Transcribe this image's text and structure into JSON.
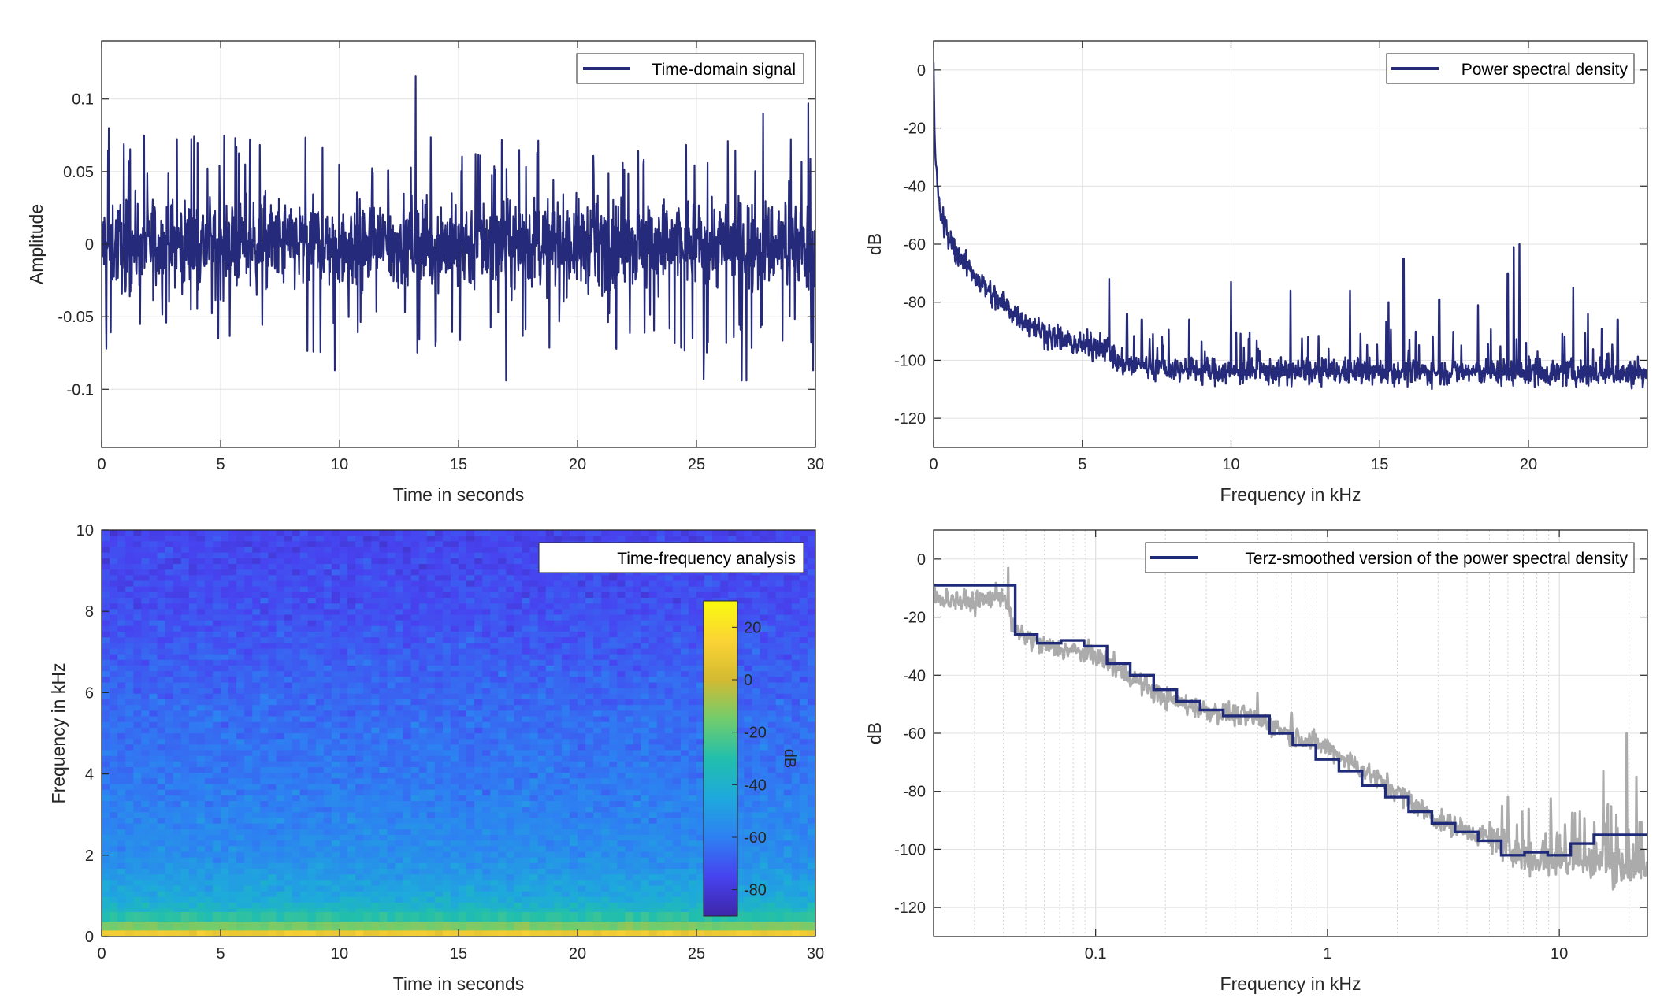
{
  "colors": {
    "signal": "#262a7a",
    "smoothed": "#1f2a78",
    "raw_gray": "#ababab",
    "grid": "#e1e1e1",
    "axis": "#262626",
    "colormap": [
      "#3e26a8",
      "#4743f0",
      "#2e80f2",
      "#1ea9dc",
      "#21bfac",
      "#72cc6c",
      "#d3ba32",
      "#fbd434",
      "#f9fb0e"
    ]
  },
  "chart_data": [
    {
      "id": "time_signal",
      "type": "line",
      "legend": "Time-domain signal",
      "legend_position": "top-right",
      "xlabel": "Time in seconds",
      "ylabel": "Amplitude",
      "xlim": [
        0,
        30
      ],
      "ylim": [
        -0.14,
        0.14
      ],
      "xticks": [
        0,
        5,
        10,
        15,
        20,
        25,
        30
      ],
      "xtick_labels": [
        "0",
        "5",
        "10",
        "15",
        "20",
        "25",
        "30"
      ],
      "yticks": [
        -0.1,
        -0.05,
        0,
        0.05,
        0.1
      ],
      "ytick_labels": [
        "-0.1",
        "-0.05",
        "0",
        "0.05",
        "0.1"
      ],
      "grid": true,
      "signal_peak_events": [
        {
          "t": 0.2,
          "v": -0.072
        },
        {
          "t": 0.3,
          "v": 0.08
        },
        {
          "t": 4.9,
          "v": -0.065
        },
        {
          "t": 9.8,
          "v": -0.087
        },
        {
          "t": 13.2,
          "v": 0.116
        },
        {
          "t": 17.0,
          "v": -0.094
        },
        {
          "t": 25.3,
          "v": -0.093
        },
        {
          "t": 26.9,
          "v": -0.094
        },
        {
          "t": 27.1,
          "v": -0.094
        },
        {
          "t": 27.8,
          "v": 0.09
        },
        {
          "t": 29.7,
          "v": 0.097
        },
        {
          "t": 29.9,
          "v": -0.087
        }
      ]
    },
    {
      "id": "psd",
      "type": "line",
      "legend": "Power spectral density",
      "legend_position": "top-right",
      "xlabel": "Frequency in kHz",
      "ylabel": "dB",
      "xlim": [
        0,
        24
      ],
      "ylim": [
        -130,
        10
      ],
      "xticks": [
        0,
        5,
        10,
        15,
        20
      ],
      "xtick_labels": [
        "0",
        "5",
        "10",
        "15",
        "20"
      ],
      "yticks": [
        0,
        -20,
        -40,
        -60,
        -80,
        -100,
        -120
      ],
      "ytick_labels": [
        "0",
        "-20",
        "-40",
        "-60",
        "-80",
        "-100",
        "-120"
      ],
      "grid": true,
      "envelope": {
        "x": [
          0,
          0.05,
          0.2,
          0.5,
          1,
          1.5,
          2,
          3,
          4,
          5,
          5.8,
          6.2,
          8,
          10,
          15,
          20,
          24
        ],
        "y": [
          0,
          -30,
          -48,
          -58,
          -66,
          -72,
          -78,
          -86,
          -92,
          -95,
          -95,
          -101,
          -103,
          -104,
          -104,
          -104,
          -105
        ]
      },
      "spectral_peaks": [
        {
          "f": 5.9,
          "db": -72
        },
        {
          "f": 6.5,
          "db": -84
        },
        {
          "f": 7.0,
          "db": -86
        },
        {
          "f": 10.0,
          "db": -73
        },
        {
          "f": 12.0,
          "db": -76
        },
        {
          "f": 14.0,
          "db": -76
        },
        {
          "f": 15.3,
          "db": -80
        },
        {
          "f": 15.8,
          "db": -65
        },
        {
          "f": 17.0,
          "db": -79
        },
        {
          "f": 18.3,
          "db": -81
        },
        {
          "f": 19.3,
          "db": -70
        },
        {
          "f": 19.5,
          "db": -61
        },
        {
          "f": 19.7,
          "db": -60
        },
        {
          "f": 21.5,
          "db": -75
        },
        {
          "f": 22.0,
          "db": -84
        },
        {
          "f": 23.0,
          "db": -86
        }
      ]
    },
    {
      "id": "spectrogram",
      "type": "heatmap",
      "legend": "Time-frequency analysis",
      "legend_position": "top-right",
      "xlabel": "Time in seconds",
      "ylabel": "Frequency in kHz",
      "xlim": [
        0,
        30
      ],
      "ylim": [
        0,
        10
      ],
      "xticks": [
        0,
        5,
        10,
        15,
        20,
        25,
        30
      ],
      "xtick_labels": [
        "0",
        "5",
        "10",
        "15",
        "20",
        "25",
        "30"
      ],
      "yticks": [
        0,
        2,
        4,
        6,
        8,
        10
      ],
      "ytick_labels": [
        "0",
        "2",
        "4",
        "6",
        "8",
        "10"
      ],
      "colorbar": {
        "label": "dB",
        "range": [
          -90,
          30
        ],
        "ticks": [
          20,
          0,
          -20,
          -40,
          -60,
          -80
        ],
        "tick_labels": [
          "20",
          "0",
          "-20",
          "-40",
          "-60",
          "-80"
        ]
      },
      "level_profile_db": {
        "freq_khz": [
          0,
          0.1,
          0.3,
          0.6,
          1,
          2,
          4,
          6,
          8,
          10
        ],
        "db": [
          25,
          5,
          -20,
          -35,
          -45,
          -55,
          -62,
          -66,
          -72,
          -75
        ]
      }
    },
    {
      "id": "terz_psd",
      "type": "line",
      "legend": "Terz-smoothed version of the power spectral density",
      "legend_position": "top-right",
      "xlabel": "Frequency in kHz",
      "ylabel": "dB",
      "xscale": "log",
      "xlim": [
        0.02,
        24
      ],
      "ylim": [
        -130,
        10
      ],
      "xticks": [
        0.1,
        1,
        10
      ],
      "xtick_labels": [
        "0.1",
        "1",
        "10"
      ],
      "yticks": [
        0,
        -20,
        -40,
        -60,
        -80,
        -100,
        -120
      ],
      "ytick_labels": [
        "0",
        "-20",
        "-40",
        "-60",
        "-80",
        "-100",
        "-120"
      ],
      "grid": true,
      "series": [
        {
          "name": "Terz-smoothed version of the power spectral density",
          "band_edges_khz": [
            0.02,
            0.045,
            0.056,
            0.071,
            0.089,
            0.112,
            0.141,
            0.178,
            0.224,
            0.282,
            0.355,
            0.447,
            0.562,
            0.708,
            0.891,
            1.12,
            1.41,
            1.78,
            2.24,
            2.82,
            3.55,
            4.47,
            5.62,
            7.08,
            8.91,
            11.2,
            14.1,
            17.8,
            24
          ],
          "values_db": [
            -9,
            -26,
            -29,
            -28,
            -30,
            -36,
            -40,
            -45,
            -49,
            -52,
            -54,
            -54,
            -60,
            -64,
            -69,
            -73,
            -78,
            -82,
            -87,
            -91,
            -94,
            -97,
            -102,
            -101,
            -102,
            -98,
            -95,
            -95
          ]
        },
        {
          "unnamed": true,
          "raw_envelope": {
            "f_khz": [
              0.02,
              0.03,
              0.04,
              0.045,
              0.06,
              0.1,
              0.2,
              0.3,
              0.5,
              0.6,
              1,
              2,
              3,
              5,
              7,
              10,
              15,
              20,
              24
            ],
            "db": [
              -13,
              -15,
              -12,
              -25,
              -30,
              -33,
              -48,
              -52,
              -55,
              -58,
              -65,
              -80,
              -90,
              -96,
              -102,
              -104,
              -104,
              -106,
              -106
            ]
          },
          "peaks": [
            {
              "f": 0.042,
              "db": -3
            },
            {
              "f": 0.12,
              "db": -32
            },
            {
              "f": 0.5,
              "db": -46
            },
            {
              "f": 0.7,
              "db": -53
            },
            {
              "f": 6.0,
              "db": -82
            },
            {
              "f": 15.5,
              "db": -73
            },
            {
              "f": 19.5,
              "db": -60
            },
            {
              "f": 21.5,
              "db": -75
            }
          ]
        }
      ]
    }
  ]
}
